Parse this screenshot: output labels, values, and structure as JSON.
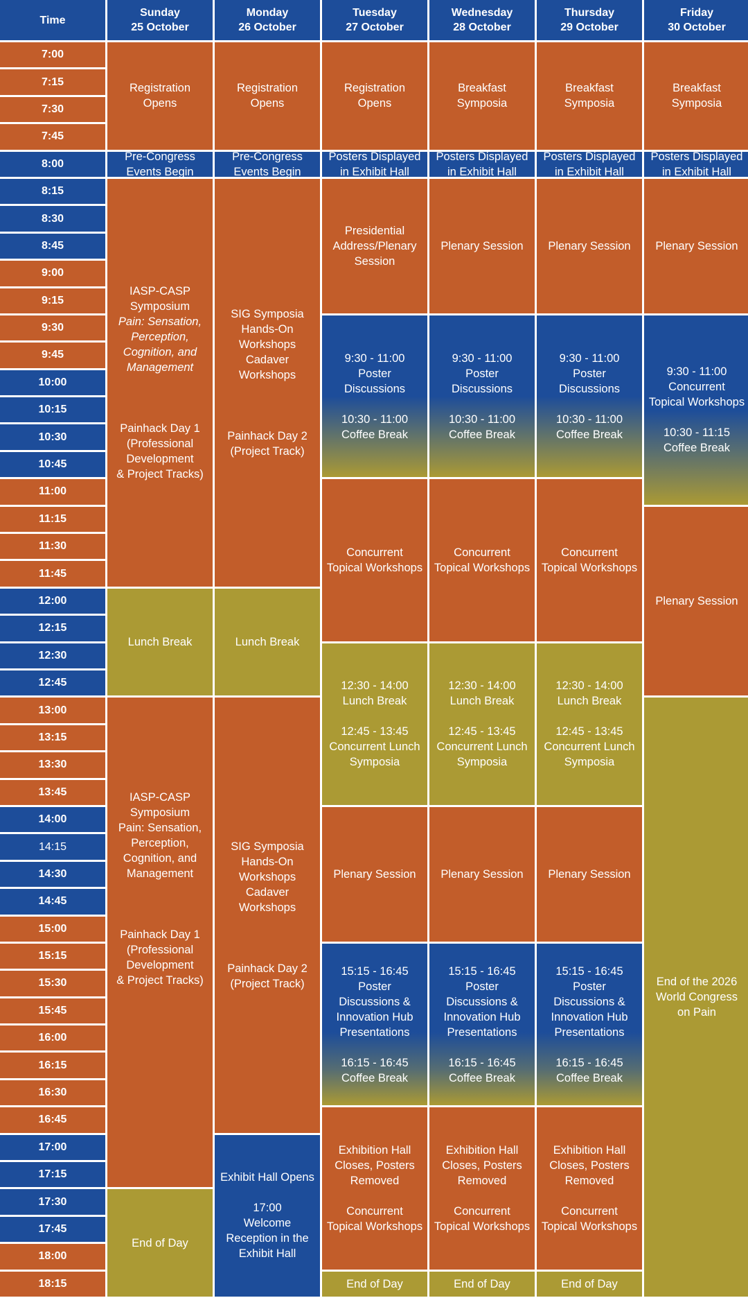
{
  "header": {
    "time_label": "Time",
    "days": [
      {
        "day": "Sunday",
        "date": "25 October"
      },
      {
        "day": "Monday",
        "date": "26 October"
      },
      {
        "day": "Tuesday",
        "date": "27 October"
      },
      {
        "day": "Wednesday",
        "date": "28 October"
      },
      {
        "day": "Thursday",
        "date": "29 October"
      },
      {
        "day": "Friday",
        "date": "30 October"
      }
    ]
  },
  "colors": {
    "orange": "#c25d2a",
    "blue": "#1d4d9a",
    "olive": "#ab9a34"
  },
  "times": [
    "7:00",
    "7:15",
    "7:30",
    "7:45",
    "8:00",
    "8:15",
    "8:30",
    "8:45",
    "9:00",
    "9:15",
    "9:30",
    "9:45",
    "10:00",
    "10:15",
    "10:30",
    "10:45",
    "11:00",
    "11:15",
    "11:30",
    "11:45",
    "12:00",
    "12:15",
    "12:30",
    "12:45",
    "13:00",
    "13:15",
    "13:30",
    "13:45",
    "14:00",
    "14:15",
    "14:30",
    "14:45",
    "15:00",
    "15:15",
    "15:30",
    "15:45",
    "16:00",
    "16:15",
    "16:30",
    "16:45",
    "17:00",
    "17:15",
    "17:30",
    "17:45",
    "18:00",
    "18:15"
  ],
  "sunday": {
    "registration": "Registration\nOpens",
    "pre_congress": "Pre-Congress\nEvents Begin",
    "am_symposium_title": "IASP-CASP\nSymposium",
    "am_symposium_subtitle": "Pain: Sensation,\nPerception,\nCognition, and\nManagement",
    "am_painhack": "Painhack Day 1\n(Professional\nDevelopment\n& Project Tracks)",
    "lunch": "Lunch Break",
    "pm_symposium": "IASP-CASP\nSymposium\nPain: Sensation,\nPerception,\nCognition, and\nManagement",
    "pm_painhack": "Painhack Day 1\n(Professional\nDevelopment\n& Project Tracks)",
    "end": "End of Day"
  },
  "monday": {
    "registration": "Registration\nOpens",
    "pre_congress": "Pre-Congress\nEvents Begin",
    "am_sig": "SIG Symposia\nHands-On\nWorkshops\nCadaver\nWorkshops",
    "am_painhack": "Painhack Day 2\n(Project Track)",
    "lunch": "Lunch Break",
    "pm_sig": "SIG Symposia\nHands-On\nWorkshops\nCadaver\nWorkshops",
    "pm_painhack": "Painhack Day 2\n(Project Track)",
    "exhibit_opens": "Exhibit Hall Opens",
    "welcome": "17:00\nWelcome\nReception in the\nExhibit Hall"
  },
  "tuesday": {
    "morning": "Registration\nOpens",
    "posters": "Posters Displayed\nin Exhibit Hall",
    "plenary1": "Presidential\nAddress/Plenary\nSession",
    "poster_disc": "9:30 - 11:00\nPoster\nDiscussions",
    "coffee1": "10:30 - 11:00\nCoffee Break",
    "workshops": "Concurrent\nTopical Workshops",
    "lunch": "12:30 - 14:00\nLunch Break",
    "lunch_symp": "12:45 - 13:45\nConcurrent Lunch\nSymposia",
    "plenary2": "Plenary Session",
    "poster_innov": "15:15 - 16:45\nPoster\nDiscussions &\nInnovation Hub\nPresentations",
    "coffee2": "16:15 - 16:45\nCoffee Break",
    "exhibit_close": "Exhibition Hall\nCloses, Posters\nRemoved",
    "workshops2": "Concurrent\nTopical Workshops",
    "end": "End of Day"
  },
  "wednesday": {
    "morning": "Breakfast\nSymposia",
    "posters": "Posters Displayed\nin Exhibit Hall",
    "plenary1": "Plenary Session",
    "poster_disc": "9:30 - 11:00\nPoster\nDiscussions",
    "coffee1": "10:30 - 11:00\nCoffee Break",
    "workshops": "Concurrent\nTopical Workshops",
    "lunch": "12:30 - 14:00\nLunch Break",
    "lunch_symp": "12:45 - 13:45\nConcurrent Lunch\nSymposia",
    "plenary2": "Plenary Session",
    "poster_innov": "15:15 - 16:45\nPoster\nDiscussions &\nInnovation Hub\nPresentations",
    "coffee2": "16:15 - 16:45\nCoffee Break",
    "exhibit_close": "Exhibition Hall\nCloses, Posters\nRemoved",
    "workshops2": "Concurrent\nTopical Workshops",
    "end": "End of Day"
  },
  "thursday": {
    "morning": "Breakfast\nSymposia",
    "posters": "Posters Displayed\nin Exhibit Hall",
    "plenary1": "Plenary Session",
    "poster_disc": "9:30 - 11:00\nPoster\nDiscussions",
    "coffee1": "10:30 - 11:00\nCoffee Break",
    "workshops": "Concurrent\nTopical Workshops",
    "lunch": "12:30 - 14:00\nLunch Break",
    "lunch_symp": "12:45 - 13:45\nConcurrent Lunch\nSymposia",
    "plenary2": "Plenary Session",
    "poster_innov": "15:15 - 16:45\nPoster\nDiscussions &\nInnovation Hub\nPresentations",
    "coffee2": "16:15 - 16:45\nCoffee Break",
    "exhibit_close": "Exhibition Hall\nCloses, Posters\nRemoved",
    "workshops2": "Concurrent\nTopical Workshops",
    "end": "End of Day"
  },
  "friday": {
    "morning": "Breakfast\nSymposia",
    "posters": "Posters Displayed\nin Exhibit Hall",
    "plenary1": "Plenary Session",
    "workshops": "9:30 - 11:00\nConcurrent\nTopical Workshops",
    "coffee": "10:30 - 11:15\nCoffee Break",
    "plenary2": "Plenary Session",
    "end": "End of the 2026\nWorld Congress\non Pain"
  }
}
